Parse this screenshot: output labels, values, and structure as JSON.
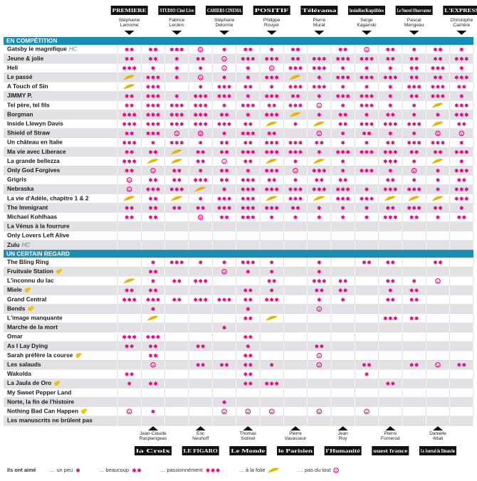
{
  "columns": [
    {
      "outlet": "PREMIERE",
      "first": "Stéphanie",
      "last": "Lamome",
      "position": "top"
    },
    {
      "outlet": "la Croix",
      "first": "Jean-Claude",
      "last": "Raspiengeas",
      "position": "bottom"
    },
    {
      "outlet": "STUDIO Ciné Live",
      "first": "Fabrice",
      "last": "Leclerc",
      "position": "top"
    },
    {
      "outlet": "LE FIGARO",
      "first": "Eric",
      "last": "Neuhoff",
      "position": "bottom"
    },
    {
      "outlet": "CAHIERS CINEMA",
      "first": "Stéphane",
      "last": "Delorme",
      "position": "top"
    },
    {
      "outlet": "Le Monde",
      "first": "Thomas",
      "last": "Sotinel",
      "position": "bottom"
    },
    {
      "outlet": "POSITIF",
      "first": "Philippe",
      "last": "Rouyer",
      "position": "top"
    },
    {
      "outlet": "le Parisien",
      "first": "Pierre",
      "last": "Vavasseur",
      "position": "bottom"
    },
    {
      "outlet": "Télérama",
      "first": "Pierre",
      "last": "Murat",
      "position": "top"
    },
    {
      "outlet": "l'Humanité",
      "first": "Jean",
      "last": "Roy",
      "position": "bottom"
    },
    {
      "outlet": "lesinRocKuptibles",
      "first": "Serge",
      "last": "Kaganski",
      "position": "top"
    },
    {
      "outlet": "ouest france",
      "first": "Pierre",
      "last": "Fornerod",
      "position": "bottom"
    },
    {
      "outlet": "Le Nouvel Observateur",
      "first": "Pascal",
      "last": "Merigeau",
      "position": "top"
    },
    {
      "outlet": "Le Journal du Dimanche",
      "first": "Danielle",
      "last": "Attali",
      "position": "bottom"
    },
    {
      "outlet": "L'EXPRESS",
      "first": "Christophe",
      "last": "Carrière",
      "position": "top"
    }
  ],
  "sections": [
    {
      "title": "EN COMPÉTITION",
      "films": [
        {
          "title": "Gatsby le magnifique",
          "note": "HC",
          "ratings": [
            2,
            2,
            3,
            0,
            1,
            2,
            1,
            2,
            null,
            2,
            0,
            2,
            1,
            2,
            1
          ]
        },
        {
          "title": "Jeune & jolie",
          "ratings": [
            2,
            2,
            1,
            2,
            0,
            3,
            3,
            2,
            3,
            3,
            3,
            2,
            2,
            2,
            3
          ]
        },
        {
          "title": "Heli",
          "ratings": [
            3,
            1,
            1,
            1,
            0,
            1,
            0,
            3,
            3,
            1,
            1,
            1,
            2,
            3,
            1
          ]
        },
        {
          "title": "Le passé",
          "ratings": [
            4,
            3,
            1,
            0,
            1,
            1,
            3,
            4,
            1,
            3,
            3,
            3,
            2,
            2,
            3
          ]
        },
        {
          "title": "A Touch of Sin",
          "ratings": [
            4,
            3,
            null,
            1,
            3,
            2,
            1,
            3,
            3,
            1,
            1,
            1,
            3,
            3,
            2
          ]
        },
        {
          "title": "JIMMY P.",
          "ratings": [
            2,
            3,
            1,
            3,
            3,
            1,
            3,
            2,
            1,
            3,
            3,
            1,
            2,
            3,
            1
          ]
        },
        {
          "title": "Tel père, tel fils",
          "ratings": [
            2,
            3,
            3,
            3,
            1,
            3,
            2,
            3,
            0,
            1,
            3,
            1,
            1,
            4,
            3
          ]
        },
        {
          "title": "Borgman",
          "ratings": [
            3,
            3,
            3,
            3,
            2,
            1,
            3,
            4,
            1,
            2,
            1,
            2,
            1,
            1,
            3
          ]
        },
        {
          "title": "Inside Llewyn Davis",
          "ratings": [
            3,
            3,
            3,
            3,
            3,
            2,
            4,
            1,
            4,
            2,
            3,
            3,
            3,
            4,
            2
          ]
        },
        {
          "title": "Shield of Straw",
          "ratings": [
            2,
            3,
            0,
            0,
            1,
            3,
            2,
            null,
            0,
            1,
            2,
            1,
            1,
            0,
            0
          ]
        },
        {
          "title": "Un château en Italie",
          "ratings": [
            3,
            1,
            3,
            1,
            2,
            2,
            3,
            3,
            2,
            1,
            1,
            2,
            3,
            3,
            1
          ]
        },
        {
          "title": "Ma vie avec Liberace",
          "ratings": [
            2,
            2,
            4,
            2,
            2,
            3,
            3,
            3,
            1,
            3,
            3,
            3,
            2,
            2,
            3
          ]
        },
        {
          "title": "La grande bellezza",
          "ratings": [
            3,
            4,
            4,
            2,
            0,
            2,
            4,
            1,
            4,
            1,
            null,
            3,
            1,
            4,
            1
          ]
        },
        {
          "title": "Only God Forgives",
          "ratings": [
            2,
            0,
            2,
            1,
            2,
            1,
            3,
            0,
            3,
            1,
            3,
            1,
            0,
            1,
            3
          ]
        },
        {
          "title": "Grigris",
          "ratings": [
            0,
            2,
            2,
            3,
            2,
            3,
            2,
            1,
            2,
            2,
            null,
            2,
            1,
            1,
            2
          ]
        },
        {
          "title": "Nebraska",
          "ratings": [
            0,
            3,
            3,
            4,
            1,
            3,
            3,
            3,
            3,
            3,
            1,
            3,
            3,
            1,
            3
          ]
        },
        {
          "title": "La vie d'Adèle, chapitre 1 & 2",
          "ratings": [
            4,
            2,
            4,
            1,
            3,
            3,
            4,
            3,
            4,
            3,
            3,
            4,
            4,
            4,
            3
          ]
        },
        {
          "title": "The Immigrant",
          "ratings": [
            2,
            2,
            2,
            2,
            3,
            3,
            3,
            2,
            1,
            1,
            1,
            2,
            3,
            2,
            1
          ]
        },
        {
          "title": "Michael Kohlhaas",
          "ratings": [
            2,
            2,
            null,
            0,
            2,
            3,
            1,
            1,
            1,
            1,
            1,
            3,
            2,
            1,
            2
          ]
        },
        {
          "title": "La Vénus à la fourrure",
          "ratings": [
            null,
            null,
            null,
            null,
            null,
            null,
            null,
            null,
            null,
            null,
            null,
            null,
            null,
            null,
            null
          ]
        },
        {
          "title": "Only Lovers Left Alive",
          "ratings": [
            null,
            null,
            null,
            null,
            null,
            null,
            null,
            null,
            null,
            null,
            null,
            null,
            null,
            null,
            null
          ]
        },
        {
          "title": "Zulu",
          "note": "HC",
          "ratings": [
            null,
            null,
            null,
            null,
            null,
            null,
            null,
            null,
            null,
            null,
            null,
            null,
            null,
            null,
            null
          ]
        }
      ]
    },
    {
      "title": "UN CERTAIN REGARD",
      "films": [
        {
          "title": "The Bling Ring",
          "ratings": [
            null,
            1,
            3,
            1,
            1,
            3,
            1,
            null,
            1,
            null,
            2,
            2,
            null,
            2,
            null
          ]
        },
        {
          "title": "Fruitvale Station",
          "first_film": true,
          "ratings": [
            null,
            2,
            null,
            null,
            0,
            1,
            1,
            null,
            1,
            null,
            null,
            null,
            null,
            null,
            null
          ]
        },
        {
          "title": "L'inconnu du lac",
          "ratings": [
            4,
            1,
            2,
            3,
            null,
            null,
            2,
            null,
            3,
            2,
            null,
            2,
            1,
            0,
            null
          ]
        },
        {
          "title": "Miele",
          "first_film": true,
          "ratings": [
            2,
            2,
            null,
            null,
            null,
            2,
            1,
            null,
            2,
            2,
            null,
            1,
            2,
            null,
            null
          ]
        },
        {
          "title": "Grand Central",
          "ratings": [
            3,
            3,
            2,
            3,
            3,
            2,
            3,
            null,
            1,
            1,
            null,
            2,
            2,
            null,
            null
          ]
        },
        {
          "title": "Bends",
          "first_film": true,
          "ratings": [
            null,
            1,
            null,
            null,
            null,
            1,
            null,
            null,
            0,
            null,
            null,
            null,
            null,
            null,
            null
          ]
        },
        {
          "title": "L'image manquante",
          "ratings": [
            null,
            4,
            null,
            null,
            null,
            2,
            4,
            null,
            null,
            null,
            null,
            3,
            2,
            null,
            null
          ]
        },
        {
          "title": "Marche de la mort",
          "ratings": [
            null,
            null,
            null,
            null,
            1,
            null,
            null,
            null,
            null,
            null,
            null,
            null,
            null,
            null,
            null
          ]
        },
        {
          "title": "Omar",
          "ratings": [
            3,
            3,
            null,
            null,
            null,
            2,
            null,
            null,
            null,
            null,
            null,
            null,
            null,
            null,
            null
          ]
        },
        {
          "title": "As I Lay Dying",
          "ratings": [
            2,
            2,
            null,
            2,
            null,
            1,
            null,
            null,
            2,
            null,
            null,
            null,
            null,
            null,
            null
          ]
        },
        {
          "title": "Sarah préfère la course",
          "first_film": true,
          "ratings": [
            null,
            2,
            null,
            null,
            null,
            2,
            null,
            null,
            0,
            null,
            null,
            null,
            null,
            null,
            null
          ]
        },
        {
          "title": "Les salauds",
          "ratings": [
            null,
            0,
            null,
            2,
            2,
            2,
            1,
            null,
            0,
            null,
            2,
            null,
            2,
            0,
            2
          ]
        },
        {
          "title": "Wakolda",
          "ratings": [
            2,
            null,
            null,
            null,
            null,
            2,
            null,
            null,
            null,
            null,
            1,
            null,
            null,
            null,
            null
          ]
        },
        {
          "title": "La Jaula de Oro",
          "first_film": true,
          "ratings": [
            1,
            2,
            null,
            null,
            null,
            2,
            3,
            null,
            null,
            null,
            null,
            2,
            null,
            null,
            null
          ]
        },
        {
          "title": "My Sweet Pepper Land",
          "ratings": [
            null,
            null,
            null,
            null,
            null,
            null,
            null,
            null,
            null,
            null,
            null,
            null,
            null,
            null,
            null
          ]
        },
        {
          "title": "Norte, la fin de l'histoire",
          "ratings": [
            null,
            null,
            null,
            null,
            1,
            null,
            null,
            null,
            null,
            null,
            null,
            null,
            null,
            null,
            null
          ]
        },
        {
          "title": "Nothing Bad Can Happen",
          "first_film": true,
          "ratings": [
            0,
            1,
            null,
            null,
            0,
            0,
            0,
            null,
            0,
            null,
            0,
            null,
            null,
            null,
            null
          ]
        },
        {
          "title": "Les manuscrits ne brûlent pas",
          "ratings": [
            null,
            null,
            null,
            null,
            null,
            null,
            null,
            null,
            null,
            null,
            null,
            null,
            null,
            null,
            null
          ]
        }
      ]
    }
  ],
  "legend": {
    "title": "Ils ont aimé",
    "items": [
      {
        "label": "… un peu",
        "value": 1
      },
      {
        "label": "… beaucoup",
        "value": 2
      },
      {
        "label": "… passionnément",
        "value": 3
      },
      {
        "label": "… à la folie",
        "value": 4
      },
      {
        "label": "… pas du tout",
        "value": 0
      }
    ]
  }
}
